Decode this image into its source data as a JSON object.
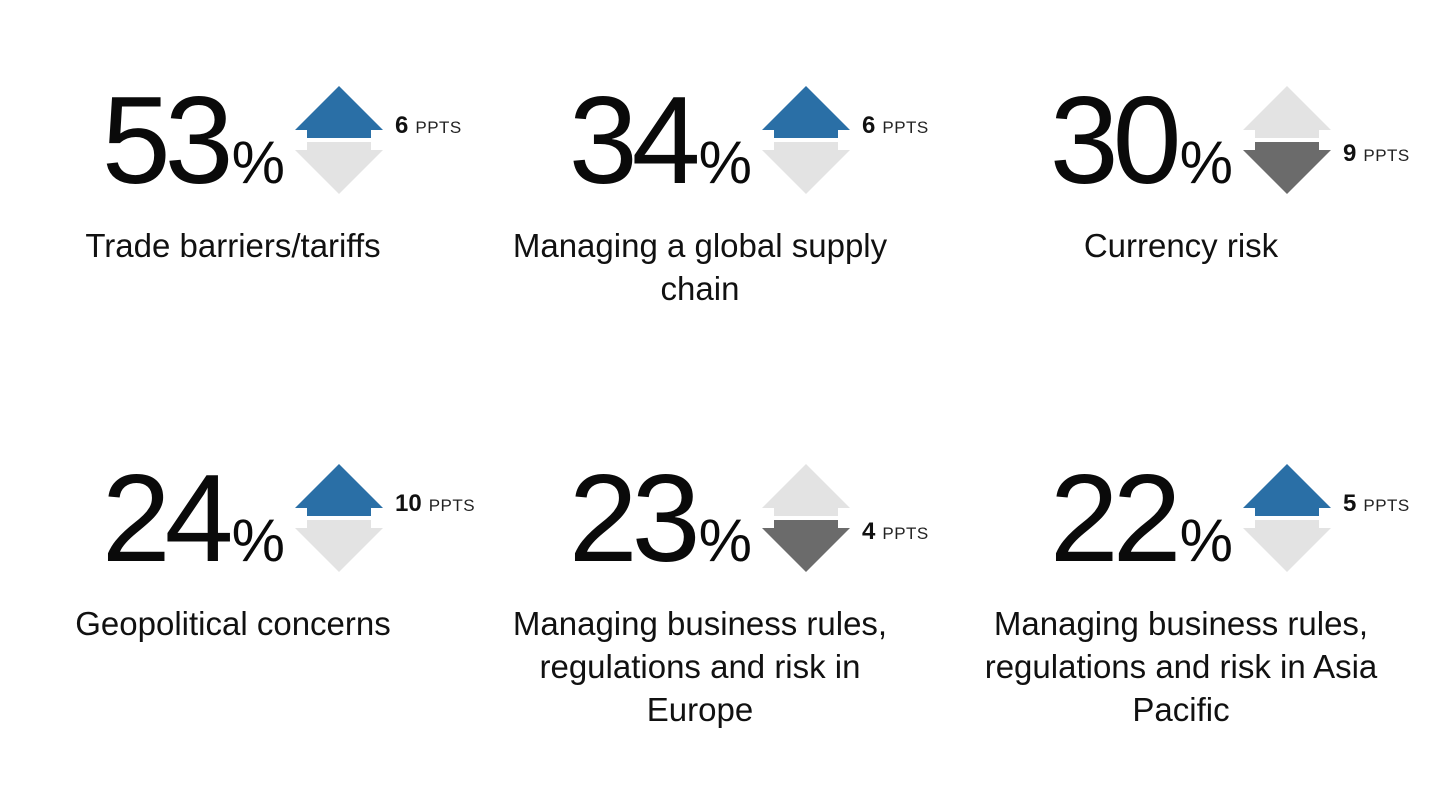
{
  "chart_data": {
    "type": "table",
    "unit_suffix": "%",
    "change_unit": "PPTS",
    "colors": {
      "up_active": "#2a6fa6",
      "down_active": "#6b6b6b",
      "inactive": "#e3e3e3"
    },
    "items": [
      {
        "value": "53",
        "label": "Trade barriers/tariffs",
        "direction": "up",
        "change": "6"
      },
      {
        "value": "34",
        "label": "Managing a global supply chain",
        "direction": "up",
        "change": "6"
      },
      {
        "value": "30",
        "label": "Currency risk",
        "direction": "down",
        "change": "9"
      },
      {
        "value": "24",
        "label": "Geopolitical concerns",
        "direction": "up",
        "change": "10"
      },
      {
        "value": "23",
        "label": "Managing business rules, regulations and risk in Europe",
        "direction": "down",
        "change": "4"
      },
      {
        "value": "22",
        "label": "Managing business rules, regulations and risk in Asia Pacific",
        "direction": "up",
        "change": "5"
      }
    ]
  }
}
